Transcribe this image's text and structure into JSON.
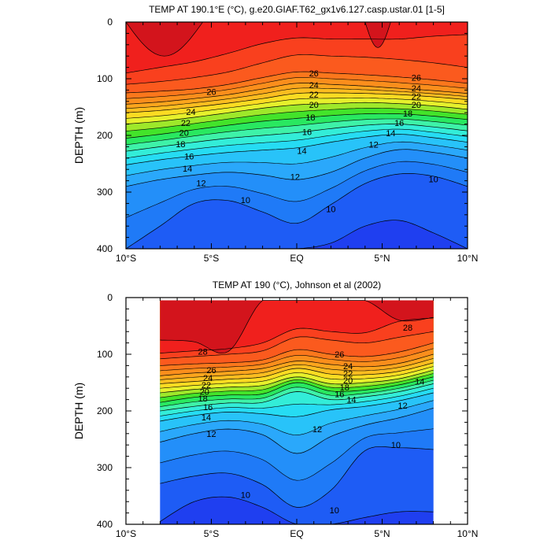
{
  "chart_data": [
    {
      "type": "contour",
      "title": "TEMP AT 190.1°E (°C), g.e20.GIAF.T62_gx1v6.127.casp.ustar.01 [1-5]",
      "xlabel": "",
      "ylabel": "DEPTH (m)",
      "xlim": [
        -10,
        10
      ],
      "ylim": [
        400,
        0
      ],
      "x_ticks": [
        -10,
        -5,
        0,
        5,
        10
      ],
      "x_tick_labels": [
        "10°S",
        "5°S",
        "EQ",
        "5°N",
        "10°N"
      ],
      "y_ticks": [
        0,
        100,
        200,
        300,
        400
      ],
      "y_tick_labels": [
        "0",
        "100",
        "200",
        "300",
        "400"
      ],
      "data_xlim": [
        -10,
        10
      ],
      "contour_levels": [
        9,
        10,
        11,
        12,
        13,
        14,
        15,
        16,
        17,
        18,
        19,
        20,
        21,
        22,
        23,
        24,
        25,
        26,
        27,
        28,
        29
      ],
      "isotherm_depths_m": {
        "x": [
          -10,
          -8,
          -6,
          -4,
          -2,
          0,
          2,
          4,
          6,
          8,
          10
        ],
        "t28": [
          90,
          80,
          70,
          55,
          38,
          28,
          30,
          30,
          30,
          25,
          22
        ],
        "t27": [
          110,
          105,
          98,
          88,
          72,
          58,
          60,
          62,
          66,
          72,
          80
        ],
        "t26": [
          125,
          122,
          118,
          110,
          98,
          88,
          90,
          93,
          97,
          102,
          108
        ],
        "t24": [
          145,
          141,
          135,
          128,
          118,
          108,
          110,
          113,
          117,
          121,
          126
        ],
        "t22": [
          160,
          156,
          150,
          143,
          135,
          126,
          125,
          126,
          128,
          132,
          137
        ],
        "t20": [
          180,
          175,
          168,
          160,
          152,
          146,
          144,
          142,
          144,
          148,
          154
        ],
        "t18": [
          205,
          198,
          190,
          182,
          175,
          170,
          165,
          162,
          162,
          166,
          172
        ],
        "t16": [
          228,
          220,
          212,
          205,
          200,
          195,
          188,
          182,
          180,
          185,
          192
        ],
        "t14": [
          252,
          243,
          236,
          230,
          226,
          222,
          212,
          203,
          198,
          204,
          212
        ],
        "t12": [
          290,
          278,
          270,
          265,
          270,
          278,
          265,
          240,
          225,
          230,
          240
        ],
        "t10": [
          400,
          360,
          320,
          315,
          335,
          355,
          322,
          285,
          268,
          272,
          290
        ],
        "t9": [
          400,
          400,
          400,
          400,
          400,
          400,
          390,
          360,
          350,
          372,
          400
        ]
      },
      "warm_pools": [
        {
          "level": 29,
          "x_range": [
            -10,
            -5.5
          ],
          "max_depth_m": 60
        },
        {
          "level": 29,
          "x_range": [
            4,
            5.5
          ],
          "max_depth_m": 45
        }
      ],
      "contour_labels": [
        {
          "text": "26",
          "x": -5,
          "depth": 123
        },
        {
          "text": "24",
          "x": -6.2,
          "depth": 158
        },
        {
          "text": "22",
          "x": -6.5,
          "depth": 178
        },
        {
          "text": "20",
          "x": -6.6,
          "depth": 195
        },
        {
          "text": "18",
          "x": -6.8,
          "depth": 215
        },
        {
          "text": "16",
          "x": -6.3,
          "depth": 237
        },
        {
          "text": "14",
          "x": -6.4,
          "depth": 258
        },
        {
          "text": "12",
          "x": -5.6,
          "depth": 284
        },
        {
          "text": "10",
          "x": -3,
          "depth": 314
        },
        {
          "text": "26",
          "x": 1,
          "depth": 90
        },
        {
          "text": "24",
          "x": 1,
          "depth": 111
        },
        {
          "text": "22",
          "x": 1,
          "depth": 128
        },
        {
          "text": "20",
          "x": 1,
          "depth": 146
        },
        {
          "text": "18",
          "x": 0.8,
          "depth": 168
        },
        {
          "text": "16",
          "x": 0.6,
          "depth": 194
        },
        {
          "text": "14",
          "x": 0.3,
          "depth": 227
        },
        {
          "text": "12",
          "x": -0.1,
          "depth": 273
        },
        {
          "text": "10",
          "x": 2,
          "depth": 330
        },
        {
          "text": "26",
          "x": 7,
          "depth": 98
        },
        {
          "text": "24",
          "x": 7,
          "depth": 117
        },
        {
          "text": "22",
          "x": 7,
          "depth": 131
        },
        {
          "text": "20",
          "x": 7,
          "depth": 146
        },
        {
          "text": "18",
          "x": 6.5,
          "depth": 161
        },
        {
          "text": "16",
          "x": 6,
          "depth": 178
        },
        {
          "text": "14",
          "x": 5.5,
          "depth": 196
        },
        {
          "text": "12",
          "x": 4.5,
          "depth": 216
        },
        {
          "text": "10",
          "x": 8,
          "depth": 277
        }
      ]
    },
    {
      "type": "contour",
      "title": "TEMP AT 190 (°C), Johnson et al (2002)",
      "xlabel": "",
      "ylabel": "DEPTH (m)",
      "xlim": [
        -10,
        10
      ],
      "ylim": [
        400,
        0
      ],
      "x_ticks": [
        -10,
        -5,
        0,
        5,
        10
      ],
      "x_tick_labels": [
        "10°S",
        "5°S",
        "EQ",
        "5°N",
        "10°N"
      ],
      "y_ticks": [
        0,
        100,
        200,
        300,
        400
      ],
      "y_tick_labels": [
        "0",
        "100",
        "200",
        "300",
        "400"
      ],
      "data_xlim": [
        -8,
        8
      ],
      "data_top_m": 5,
      "contour_levels": [
        9,
        10,
        11,
        12,
        13,
        14,
        15,
        16,
        17,
        18,
        19,
        20,
        21,
        22,
        23,
        24,
        25,
        26,
        27,
        28,
        29
      ],
      "isotherm_depths_m": {
        "x": [
          -8,
          -6,
          -4,
          -2,
          0,
          2,
          4,
          6,
          8
        ],
        "t29": [
          75,
          78,
          95,
          5,
          5,
          5,
          5,
          40,
          35
        ],
        "t28": [
          98,
          94,
          90,
          80,
          55,
          60,
          62,
          42,
          36
        ],
        "t27": [
          108,
          104,
          100,
          94,
          70,
          75,
          80,
          70,
          60
        ],
        "t26": [
          120,
          117,
          115,
          110,
          92,
          100,
          104,
          96,
          80
        ],
        "t24": [
          138,
          133,
          130,
          125,
          112,
          118,
          122,
          116,
          100
        ],
        "t22": [
          152,
          148,
          144,
          140,
          125,
          135,
          136,
          130,
          115
        ],
        "t20": [
          168,
          162,
          158,
          155,
          140,
          152,
          150,
          143,
          128
        ],
        "t18": [
          185,
          176,
          172,
          170,
          150,
          165,
          163,
          154,
          140
        ],
        "t16": [
          200,
          192,
          186,
          185,
          166,
          180,
          175,
          166,
          152
        ],
        "t14": [
          218,
          208,
          202,
          205,
          210,
          198,
          192,
          182,
          168
        ],
        "t12": [
          255,
          240,
          232,
          242,
          275,
          245,
          225,
          212,
          195
        ],
        "t10": [
          328,
          315,
          310,
          330,
          370,
          340,
          270,
          265,
          268
        ],
        "t9": [
          395,
          360,
          352,
          370,
          400,
          400,
          388,
          378,
          378
        ]
      },
      "contour_labels": [
        {
          "text": "28",
          "x": -5.5,
          "depth": 95
        },
        {
          "text": "26",
          "x": -5,
          "depth": 128
        },
        {
          "text": "24",
          "x": -5.2,
          "depth": 142
        },
        {
          "text": "22",
          "x": -5.3,
          "depth": 154
        },
        {
          "text": "20",
          "x": -5.4,
          "depth": 166
        },
        {
          "text": "18",
          "x": -5.5,
          "depth": 178
        },
        {
          "text": "16",
          "x": -5.2,
          "depth": 193
        },
        {
          "text": "14",
          "x": -5.3,
          "depth": 211
        },
        {
          "text": "12",
          "x": -5,
          "depth": 240
        },
        {
          "text": "10",
          "x": -3,
          "depth": 348
        },
        {
          "text": "26",
          "x": 2.5,
          "depth": 100
        },
        {
          "text": "24",
          "x": 3,
          "depth": 121
        },
        {
          "text": "22",
          "x": 3,
          "depth": 134
        },
        {
          "text": "20",
          "x": 3,
          "depth": 146
        },
        {
          "text": "18",
          "x": 2.8,
          "depth": 158
        },
        {
          "text": "16",
          "x": 2.5,
          "depth": 170
        },
        {
          "text": "14",
          "x": 3.2,
          "depth": 180
        },
        {
          "text": "12",
          "x": 1.2,
          "depth": 232
        },
        {
          "text": "10",
          "x": 5.8,
          "depth": 260
        },
        {
          "text": "10",
          "x": 2.2,
          "depth": 375
        },
        {
          "text": "12",
          "x": 6.2,
          "depth": 190
        },
        {
          "text": "14",
          "x": 7.2,
          "depth": 148
        },
        {
          "text": "28",
          "x": 6.5,
          "depth": 53
        }
      ]
    }
  ],
  "palette": {
    "t8": "#1f3ff0",
    "t9": "#1e5cf5",
    "t10": "#1f7af7",
    "t11": "#238ff9",
    "t12": "#2aa8fb",
    "t13": "#28c3f9",
    "t14": "#26dcf3",
    "t15": "#33edd8",
    "t16": "#3ef2a8",
    "t17": "#29e860",
    "t18": "#43e32a",
    "t19": "#9ee82a",
    "t20": "#e6f02c",
    "t21": "#fbdb22",
    "t22": "#fbbd20",
    "t23": "#fba51d",
    "t24": "#fb8e1c",
    "t25": "#fb771c",
    "t26": "#fb5a1e",
    "t27": "#f9401e",
    "t28": "#f0201d",
    "t29": "#d3141c"
  }
}
